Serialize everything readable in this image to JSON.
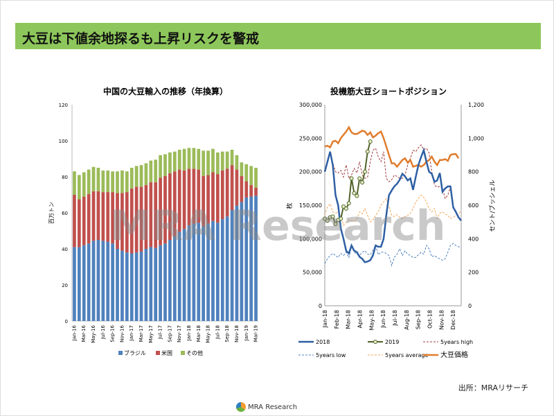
{
  "title": "大豆は下値余地探るも上昇リスクを警戒",
  "watermark": "MRA Research",
  "source": "出所：MRAリサーチ",
  "logo_text": "MRA Research",
  "colors": {
    "title_bar": "#8dc75b",
    "brazil": "#4f81bd",
    "us": "#c0504d",
    "other": "#9bbb59",
    "y2018": "#2e5fa3",
    "y2019": "#4f6228",
    "high": "#a0393a",
    "low": "#4f81bd",
    "avg": "#f2a65a",
    "price": "#e07c2c"
  },
  "chart_data": [
    {
      "type": "bar",
      "stacked": true,
      "title": "中国の大豆輸入の推移（年換算）",
      "ylabel": "百万トン",
      "ylim": [
        0,
        120
      ],
      "yticks": [
        0,
        20,
        40,
        60,
        80,
        100,
        120
      ],
      "legend": "bottom",
      "categories": [
        "Jan-16",
        "Feb-16",
        "Mar-16",
        "Apr-16",
        "May-16",
        "Jun-16",
        "Jul-16",
        "Aug-16",
        "Sep-16",
        "Oct-16",
        "Nov-16",
        "Dec-16",
        "Jan-17",
        "Feb-17",
        "Mar-17",
        "Apr-17",
        "May-17",
        "Jun-17",
        "Jul-17",
        "Aug-17",
        "Sep-17",
        "Oct-17",
        "Nov-17",
        "Dec-17",
        "Jan-18",
        "Feb-18",
        "Mar-18",
        "Apr-18",
        "May-18",
        "Jun-18",
        "Jul-18",
        "Aug-18",
        "Sep-18",
        "Oct-18",
        "Nov-18",
        "Dec-18",
        "Jan-19",
        "Feb-19",
        "Mar-19"
      ],
      "tick_labels": [
        "Jan-16",
        "Mar-16",
        "May-16",
        "Jul-16",
        "Sep-16",
        "Nov-16",
        "Jan-17",
        "Mar-17",
        "May-17",
        "Jul-17",
        "Sep-17",
        "Nov-17",
        "Jan-18",
        "Mar-18",
        "May-18",
        "Jul-18",
        "Sep-18",
        "Nov-18",
        "Jan-19",
        "Mar-19"
      ],
      "series": [
        {
          "name": "ブラジル",
          "values": [
            41,
            41,
            42,
            43,
            44.5,
            45,
            44.5,
            44,
            43,
            40,
            39,
            38,
            37.5,
            38,
            38.5,
            40,
            41,
            40.5,
            42,
            43,
            45,
            47,
            49.5,
            51,
            53,
            54,
            54.5,
            52.5,
            54,
            55.5,
            54.5,
            56.5,
            58,
            61.5,
            64,
            66,
            68.5,
            69,
            69.5
          ]
        },
        {
          "name": "米国",
          "values": [
            29,
            26.5,
            27,
            27.5,
            27.5,
            27,
            27,
            27.5,
            28.5,
            31,
            32,
            33.5,
            36,
            36.5,
            36,
            35.5,
            36,
            36.5,
            37.5,
            37.5,
            37,
            36,
            34.5,
            32.5,
            31.5,
            30.5,
            29.5,
            28,
            27,
            27,
            27,
            27,
            26.5,
            25,
            20,
            14.5,
            9,
            6.5,
            4.5
          ]
        },
        {
          "name": "その他",
          "values": [
            13,
            13.5,
            13.5,
            13.5,
            13.5,
            13,
            12,
            12,
            11.5,
            12,
            12.5,
            11.5,
            11.5,
            11.5,
            12,
            12,
            12,
            12.5,
            12.5,
            12,
            11.5,
            11,
            11,
            12,
            11.5,
            11.5,
            11.5,
            14,
            13.5,
            13,
            12,
            10.5,
            9.5,
            8.5,
            8,
            7.5,
            9.5,
            10.5,
            11
          ]
        }
      ]
    },
    {
      "type": "line",
      "title": "投機筋大豆ショートポジション",
      "ylabel": "枚",
      "y2label": "セント/ブッシェル",
      "ylim": [
        0,
        300000
      ],
      "y2lim": [
        0,
        1200
      ],
      "yticks": [
        "0",
        "50,000",
        "100,000",
        "150,000",
        "200,000",
        "250,000",
        "300,000"
      ],
      "y2ticks": [
        "0",
        "200",
        "400",
        "600",
        "800",
        "1,000",
        "1,200"
      ],
      "x_tick_labels": [
        "Jan-18",
        "Feb-18",
        "Mar-18",
        "Apr-18",
        "May-18",
        "Jun-18",
        "Jul-18",
        "Aug-18",
        "Sep-18",
        "Oct-18",
        "Nov-18",
        "Dec-18"
      ],
      "legend": "bottom",
      "series": [
        {
          "name": "2018",
          "axis": "left",
          "values": [
            200000,
            215000,
            230000,
            210000,
            165000,
            150000,
            115000,
            100000,
            82000,
            78000,
            90000,
            82000,
            80000,
            73000,
            70000,
            65000,
            66000,
            68000,
            75000,
            90000,
            88000,
            88000,
            100000,
            135000,
            165000,
            172000,
            178000,
            182000,
            188000,
            197000,
            193000,
            187000,
            190000,
            173000,
            192000,
            210000,
            222000,
            232000,
            215000,
            200000,
            197000,
            185000,
            187000,
            198000,
            170000,
            175000,
            178000,
            178000,
            147000,
            140000,
            132000,
            127000
          ]
        },
        {
          "name": "2019",
          "axis": "left",
          "values": [
            130000,
            127000,
            132000,
            133000,
            122000,
            128000,
            130000,
            148000,
            145000,
            153000,
            190000,
            168000,
            164000,
            190000,
            184000,
            200000,
            230000,
            245000
          ]
        },
        {
          "name": "5years high",
          "axis": "left",
          "values": [
            200000,
            215000,
            228000,
            213000,
            200000,
            198000,
            202000,
            192000,
            210000,
            190000,
            195000,
            205000,
            198000,
            215000,
            195000,
            190000,
            192000,
            215000,
            232000,
            235000,
            222000,
            215000,
            230000,
            190000,
            185000,
            188000,
            195000,
            193000,
            190000,
            190000,
            195000,
            210000,
            220000,
            232000,
            230000,
            236000,
            240000,
            233000,
            235000,
            228000,
            200000,
            180000,
            177000,
            178000,
            175000,
            160000,
            165000,
            178000
          ]
        },
        {
          "name": "5years low",
          "axis": "left",
          "values": [
            63000,
            70000,
            75000,
            78000,
            75000,
            72000,
            78000,
            75000,
            80000,
            72000,
            88000,
            80000,
            77000,
            75000,
            80000,
            82000,
            77000,
            76000,
            83000,
            90000,
            76000,
            80000,
            80000,
            78000,
            75000,
            60000,
            72000,
            77000,
            85000,
            75000,
            82000,
            77000,
            75000,
            72000,
            72000,
            76000,
            80000,
            77000,
            90000,
            85000,
            73000,
            75000,
            72000,
            70000,
            68000,
            70000,
            80000,
            90000,
            93000,
            90000,
            88000,
            87000
          ]
        },
        {
          "name": "5years average",
          "axis": "left",
          "values": [
            135000,
            148000,
            152000,
            140000,
            138000,
            140000,
            135000,
            120000,
            125000,
            128000,
            127000,
            125000,
            130000,
            140000,
            137000,
            145000,
            135000,
            125000,
            128000,
            135000,
            140000,
            150000,
            155000,
            160000,
            148000,
            135000,
            133000,
            136000,
            132000,
            130000,
            133000,
            135000,
            138000,
            145000,
            155000,
            160000,
            165000,
            162000,
            155000,
            145000,
            140000,
            145000,
            130000,
            138000,
            140000,
            137000,
            135000,
            130000,
            132000,
            135000,
            137000,
            142000
          ]
        },
        {
          "name": "大豆価格",
          "axis": "right",
          "values": [
            950,
            955,
            945,
            980,
            985,
            970,
            1000,
            1020,
            1040,
            1065,
            1035,
            1025,
            1025,
            1035,
            1045,
            1040,
            1020,
            1035,
            1005,
            1015,
            1030,
            1040,
            1000,
            950,
            900,
            850,
            850,
            830,
            850,
            870,
            880,
            855,
            870,
            830,
            835,
            840,
            830,
            840,
            860,
            870,
            890,
            860,
            840,
            870,
            870,
            875,
            865,
            900,
            905,
            905,
            880
          ]
        }
      ]
    }
  ]
}
